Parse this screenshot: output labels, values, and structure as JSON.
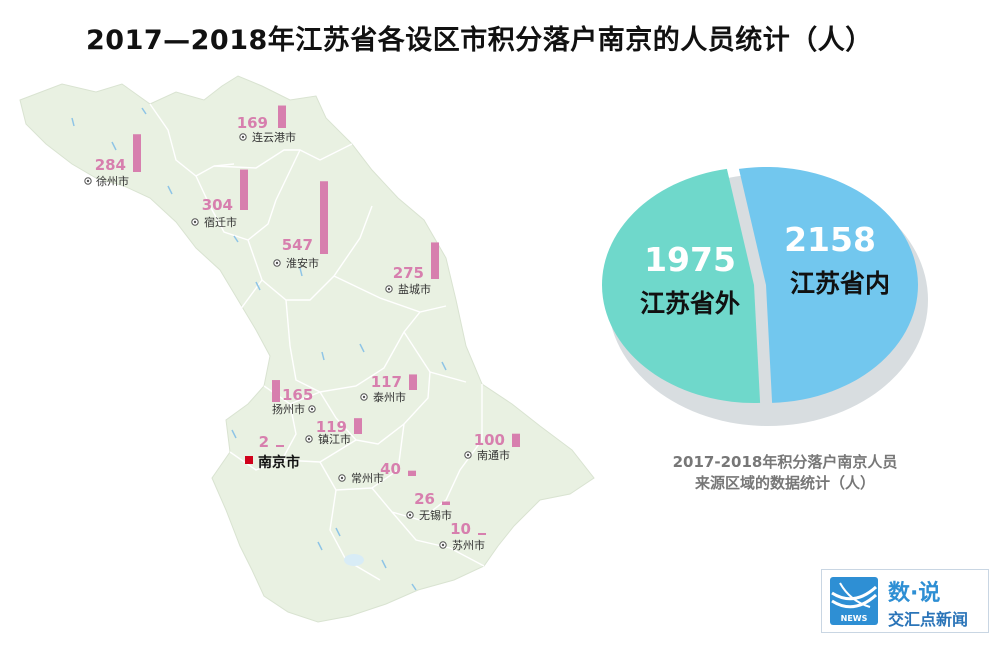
{
  "title": "2017—2018年江苏省各设区市积分落户南京的人员统计（人）",
  "cities": [
    {
      "name": "连云港市",
      "value": "169"
    },
    {
      "name": "徐州市",
      "value": "284"
    },
    {
      "name": "宿迁市",
      "value": "304"
    },
    {
      "name": "淮安市",
      "value": "547"
    },
    {
      "name": "盐城市",
      "value": "275"
    },
    {
      "name": "扬州市",
      "value": "165"
    },
    {
      "name": "泰州市",
      "value": "117"
    },
    {
      "name": "镇江市",
      "value": "119"
    },
    {
      "name": "南通市",
      "value": "100"
    },
    {
      "name": "南京市",
      "value": "2"
    },
    {
      "name": "常州市",
      "value": "40"
    },
    {
      "name": "无锡市",
      "value": "26"
    },
    {
      "name": "苏州市",
      "value": "10"
    }
  ],
  "pie": {
    "outside": {
      "value": "1975",
      "label": "江苏省外"
    },
    "inside": {
      "value": "2158",
      "label": "江苏省内"
    }
  },
  "caption_line1": "2017-2018年积分落户南京人员",
  "caption_line2": "来源区域的数据统计（人）",
  "logo": {
    "top": "数·说",
    "bottom": "交汇点新闻",
    "badge": "NEWS"
  },
  "colors": {
    "bar": "#d77fae",
    "map_fill": "#e9f1e2",
    "pie_outside": "#6fd8cb",
    "pie_inside": "#72c7ee",
    "nanjing_marker": "#d0021b"
  },
  "chart_data": [
    {
      "type": "bar",
      "categories": [
        "连云港市",
        "徐州市",
        "宿迁市",
        "淮安市",
        "盐城市",
        "扬州市",
        "泰州市",
        "镇江市",
        "南通市",
        "南京市",
        "常州市",
        "无锡市",
        "苏州市"
      ],
      "values": [
        169,
        284,
        304,
        547,
        275,
        165,
        117,
        119,
        100,
        2,
        40,
        26,
        10
      ]
    },
    {
      "type": "pie",
      "categories": [
        "江苏省外",
        "江苏省内"
      ],
      "values": [
        1975,
        2158
      ]
    }
  ]
}
